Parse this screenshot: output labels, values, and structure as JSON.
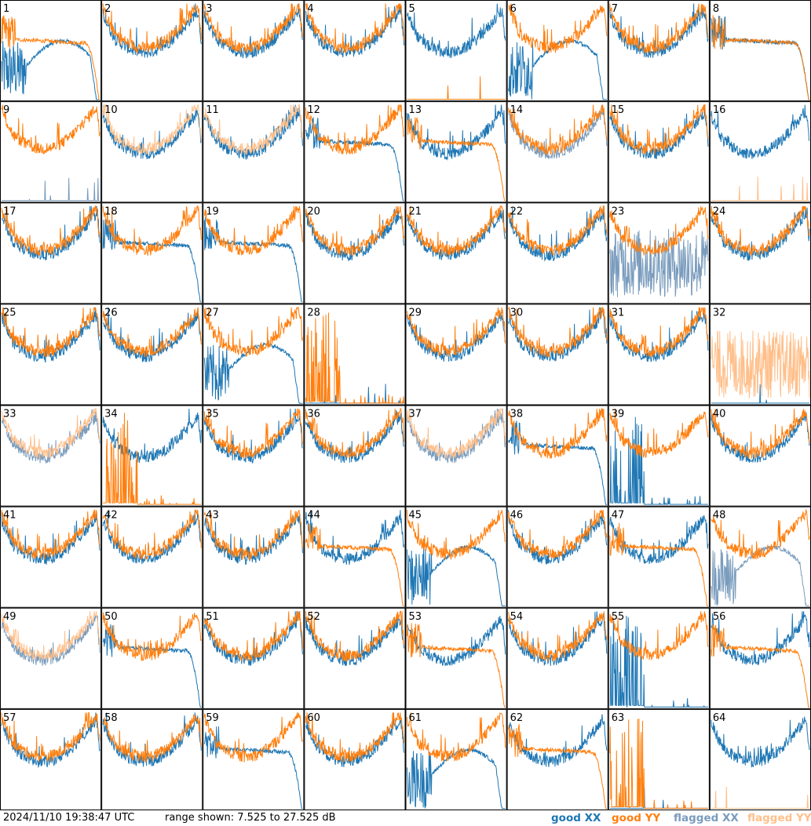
{
  "chart_data": {
    "type": "line",
    "layout": "small-multiples 8x8",
    "y_range_db": [
      7.525,
      27.525
    ],
    "panels": [
      {
        "id": "1",
        "xx": "good",
        "yy": "good",
        "xx_shape": "hump",
        "yy_shape": "rolloff"
      },
      {
        "id": "2",
        "xx": "good",
        "yy": "good",
        "xx_shape": "normal",
        "yy_shape": "normal"
      },
      {
        "id": "3",
        "xx": "good",
        "yy": "good",
        "xx_shape": "normal",
        "yy_shape": "normal"
      },
      {
        "id": "4",
        "xx": "good",
        "yy": "good",
        "xx_shape": "normal",
        "yy_shape": "normal"
      },
      {
        "id": "5",
        "xx": "good",
        "yy": "good",
        "xx_shape": "normal",
        "yy_shape": "dead"
      },
      {
        "id": "6",
        "xx": "good",
        "yy": "good",
        "xx_shape": "hump",
        "yy_shape": "normal"
      },
      {
        "id": "7",
        "xx": "good",
        "yy": "good",
        "xx_shape": "normal",
        "yy_shape": "normal"
      },
      {
        "id": "8",
        "xx": "good",
        "yy": "good",
        "xx_shape": "rolloff",
        "yy_shape": "rolloff"
      },
      {
        "id": "9",
        "xx": "flagged",
        "yy": "good",
        "xx_shape": "dead",
        "yy_shape": "normal"
      },
      {
        "id": "10",
        "xx": "good",
        "yy": "flagged",
        "xx_shape": "normal",
        "yy_shape": "normal"
      },
      {
        "id": "11",
        "xx": "good",
        "yy": "flagged",
        "xx_shape": "normal",
        "yy_shape": "normal"
      },
      {
        "id": "12",
        "xx": "good",
        "yy": "good",
        "xx_shape": "rolloff",
        "yy_shape": "normal"
      },
      {
        "id": "13",
        "xx": "good",
        "yy": "good",
        "xx_shape": "normal",
        "yy_shape": "rolloff"
      },
      {
        "id": "14",
        "xx": "flagged",
        "yy": "good",
        "xx_shape": "normal",
        "yy_shape": "normal"
      },
      {
        "id": "15",
        "xx": "good",
        "yy": "good",
        "xx_shape": "normal",
        "yy_shape": "normal"
      },
      {
        "id": "16",
        "xx": "good",
        "yy": "flagged",
        "xx_shape": "normal",
        "yy_shape": "dead"
      },
      {
        "id": "17",
        "xx": "good",
        "yy": "good",
        "xx_shape": "normal",
        "yy_shape": "normal"
      },
      {
        "id": "18",
        "xx": "good",
        "yy": "good",
        "xx_shape": "rolloff",
        "yy_shape": "normal"
      },
      {
        "id": "19",
        "xx": "good",
        "yy": "good",
        "xx_shape": "rolloff",
        "yy_shape": "normal"
      },
      {
        "id": "20",
        "xx": "good",
        "yy": "good",
        "xx_shape": "normal",
        "yy_shape": "normal"
      },
      {
        "id": "21",
        "xx": "good",
        "yy": "good",
        "xx_shape": "normal",
        "yy_shape": "normal"
      },
      {
        "id": "22",
        "xx": "good",
        "yy": "good",
        "xx_shape": "normal",
        "yy_shape": "normal"
      },
      {
        "id": "23",
        "xx": "flagged",
        "yy": "good",
        "xx_shape": "noise",
        "yy_shape": "normal"
      },
      {
        "id": "24",
        "xx": "good",
        "yy": "good",
        "xx_shape": "normal",
        "yy_shape": "normal"
      },
      {
        "id": "25",
        "xx": "good",
        "yy": "good",
        "xx_shape": "normal",
        "yy_shape": "normal"
      },
      {
        "id": "26",
        "xx": "good",
        "yy": "good",
        "xx_shape": "normal",
        "yy_shape": "normal"
      },
      {
        "id": "27",
        "xx": "good",
        "yy": "good",
        "xx_shape": "hump",
        "yy_shape": "normal"
      },
      {
        "id": "28",
        "xx": "good",
        "yy": "good",
        "xx_shape": "dead",
        "yy_shape": "spikes"
      },
      {
        "id": "29",
        "xx": "good",
        "yy": "good",
        "xx_shape": "normal",
        "yy_shape": "normal"
      },
      {
        "id": "30",
        "xx": "good",
        "yy": "good",
        "xx_shape": "normal",
        "yy_shape": "normal"
      },
      {
        "id": "31",
        "xx": "good",
        "yy": "good",
        "xx_shape": "normal",
        "yy_shape": "normal"
      },
      {
        "id": "32",
        "xx": "good",
        "yy": "flagged",
        "xx_shape": "dead",
        "yy_shape": "noise"
      },
      {
        "id": "33",
        "xx": "flagged",
        "yy": "flagged",
        "xx_shape": "normal",
        "yy_shape": "normal"
      },
      {
        "id": "34",
        "xx": "good",
        "yy": "good",
        "xx_shape": "normal",
        "yy_shape": "spikes"
      },
      {
        "id": "35",
        "xx": "good",
        "yy": "good",
        "xx_shape": "normal",
        "yy_shape": "normal"
      },
      {
        "id": "36",
        "xx": "good",
        "yy": "good",
        "xx_shape": "normal",
        "yy_shape": "normal"
      },
      {
        "id": "37",
        "xx": "flagged",
        "yy": "flagged",
        "xx_shape": "normal",
        "yy_shape": "normal"
      },
      {
        "id": "38",
        "xx": "good",
        "yy": "good",
        "xx_shape": "rolloff",
        "yy_shape": "normal"
      },
      {
        "id": "39",
        "xx": "good",
        "yy": "good",
        "xx_shape": "spikes",
        "yy_shape": "normal"
      },
      {
        "id": "40",
        "xx": "good",
        "yy": "good",
        "xx_shape": "normal",
        "yy_shape": "normal"
      },
      {
        "id": "41",
        "xx": "good",
        "yy": "good",
        "xx_shape": "normal",
        "yy_shape": "normal"
      },
      {
        "id": "42",
        "xx": "good",
        "yy": "good",
        "xx_shape": "normal",
        "yy_shape": "normal"
      },
      {
        "id": "43",
        "xx": "good",
        "yy": "good",
        "xx_shape": "normal",
        "yy_shape": "normal"
      },
      {
        "id": "44",
        "xx": "good",
        "yy": "good",
        "xx_shape": "normal",
        "yy_shape": "rolloff"
      },
      {
        "id": "45",
        "xx": "good",
        "yy": "good",
        "xx_shape": "hump",
        "yy_shape": "normal"
      },
      {
        "id": "46",
        "xx": "good",
        "yy": "good",
        "xx_shape": "normal",
        "yy_shape": "normal"
      },
      {
        "id": "47",
        "xx": "good",
        "yy": "good",
        "xx_shape": "normal",
        "yy_shape": "rolloff"
      },
      {
        "id": "48",
        "xx": "flagged",
        "yy": "good",
        "xx_shape": "hump",
        "yy_shape": "normal"
      },
      {
        "id": "49",
        "xx": "flagged",
        "yy": "flagged",
        "xx_shape": "normal",
        "yy_shape": "normal"
      },
      {
        "id": "50",
        "xx": "good",
        "yy": "good",
        "xx_shape": "rolloff",
        "yy_shape": "normal"
      },
      {
        "id": "51",
        "xx": "good",
        "yy": "good",
        "xx_shape": "normal",
        "yy_shape": "normal"
      },
      {
        "id": "52",
        "xx": "good",
        "yy": "good",
        "xx_shape": "normal",
        "yy_shape": "normal"
      },
      {
        "id": "53",
        "xx": "good",
        "yy": "good",
        "xx_shape": "normal",
        "yy_shape": "rolloff"
      },
      {
        "id": "54",
        "xx": "good",
        "yy": "good",
        "xx_shape": "normal",
        "yy_shape": "normal"
      },
      {
        "id": "55",
        "xx": "good",
        "yy": "good",
        "xx_shape": "spikes",
        "yy_shape": "normal"
      },
      {
        "id": "56",
        "xx": "good",
        "yy": "good",
        "xx_shape": "normal",
        "yy_shape": "rolloff"
      },
      {
        "id": "57",
        "xx": "good",
        "yy": "good",
        "xx_shape": "normal",
        "yy_shape": "normal"
      },
      {
        "id": "58",
        "xx": "good",
        "yy": "good",
        "xx_shape": "normal",
        "yy_shape": "normal"
      },
      {
        "id": "59",
        "xx": "good",
        "yy": "good",
        "xx_shape": "rolloff",
        "yy_shape": "normal"
      },
      {
        "id": "60",
        "xx": "good",
        "yy": "good",
        "xx_shape": "normal",
        "yy_shape": "normal"
      },
      {
        "id": "61",
        "xx": "good",
        "yy": "good",
        "xx_shape": "hump",
        "yy_shape": "normal"
      },
      {
        "id": "62",
        "xx": "good",
        "yy": "good",
        "xx_shape": "normal",
        "yy_shape": "rolloff"
      },
      {
        "id": "63",
        "xx": "good",
        "yy": "good",
        "xx_shape": "dead",
        "yy_shape": "spikes"
      },
      {
        "id": "64",
        "xx": "good",
        "yy": "flagged",
        "xx_shape": "normal",
        "yy_shape": "dead"
      }
    ]
  },
  "footer": {
    "timestamp": "2024/11/10 19:38:47 UTC",
    "range": "range shown: 7.525 to 27.525 dB"
  },
  "legend": {
    "good_xx": "good XX",
    "good_yy": "good YY",
    "flagged_xx": "flagged XX",
    "flagged_yy": "flagged YY"
  },
  "colors": {
    "good_xx": "#1f77b4",
    "good_yy": "#ff7f0e",
    "flagged_xx": "#7a9cbd",
    "flagged_yy": "#ffbf8a"
  }
}
